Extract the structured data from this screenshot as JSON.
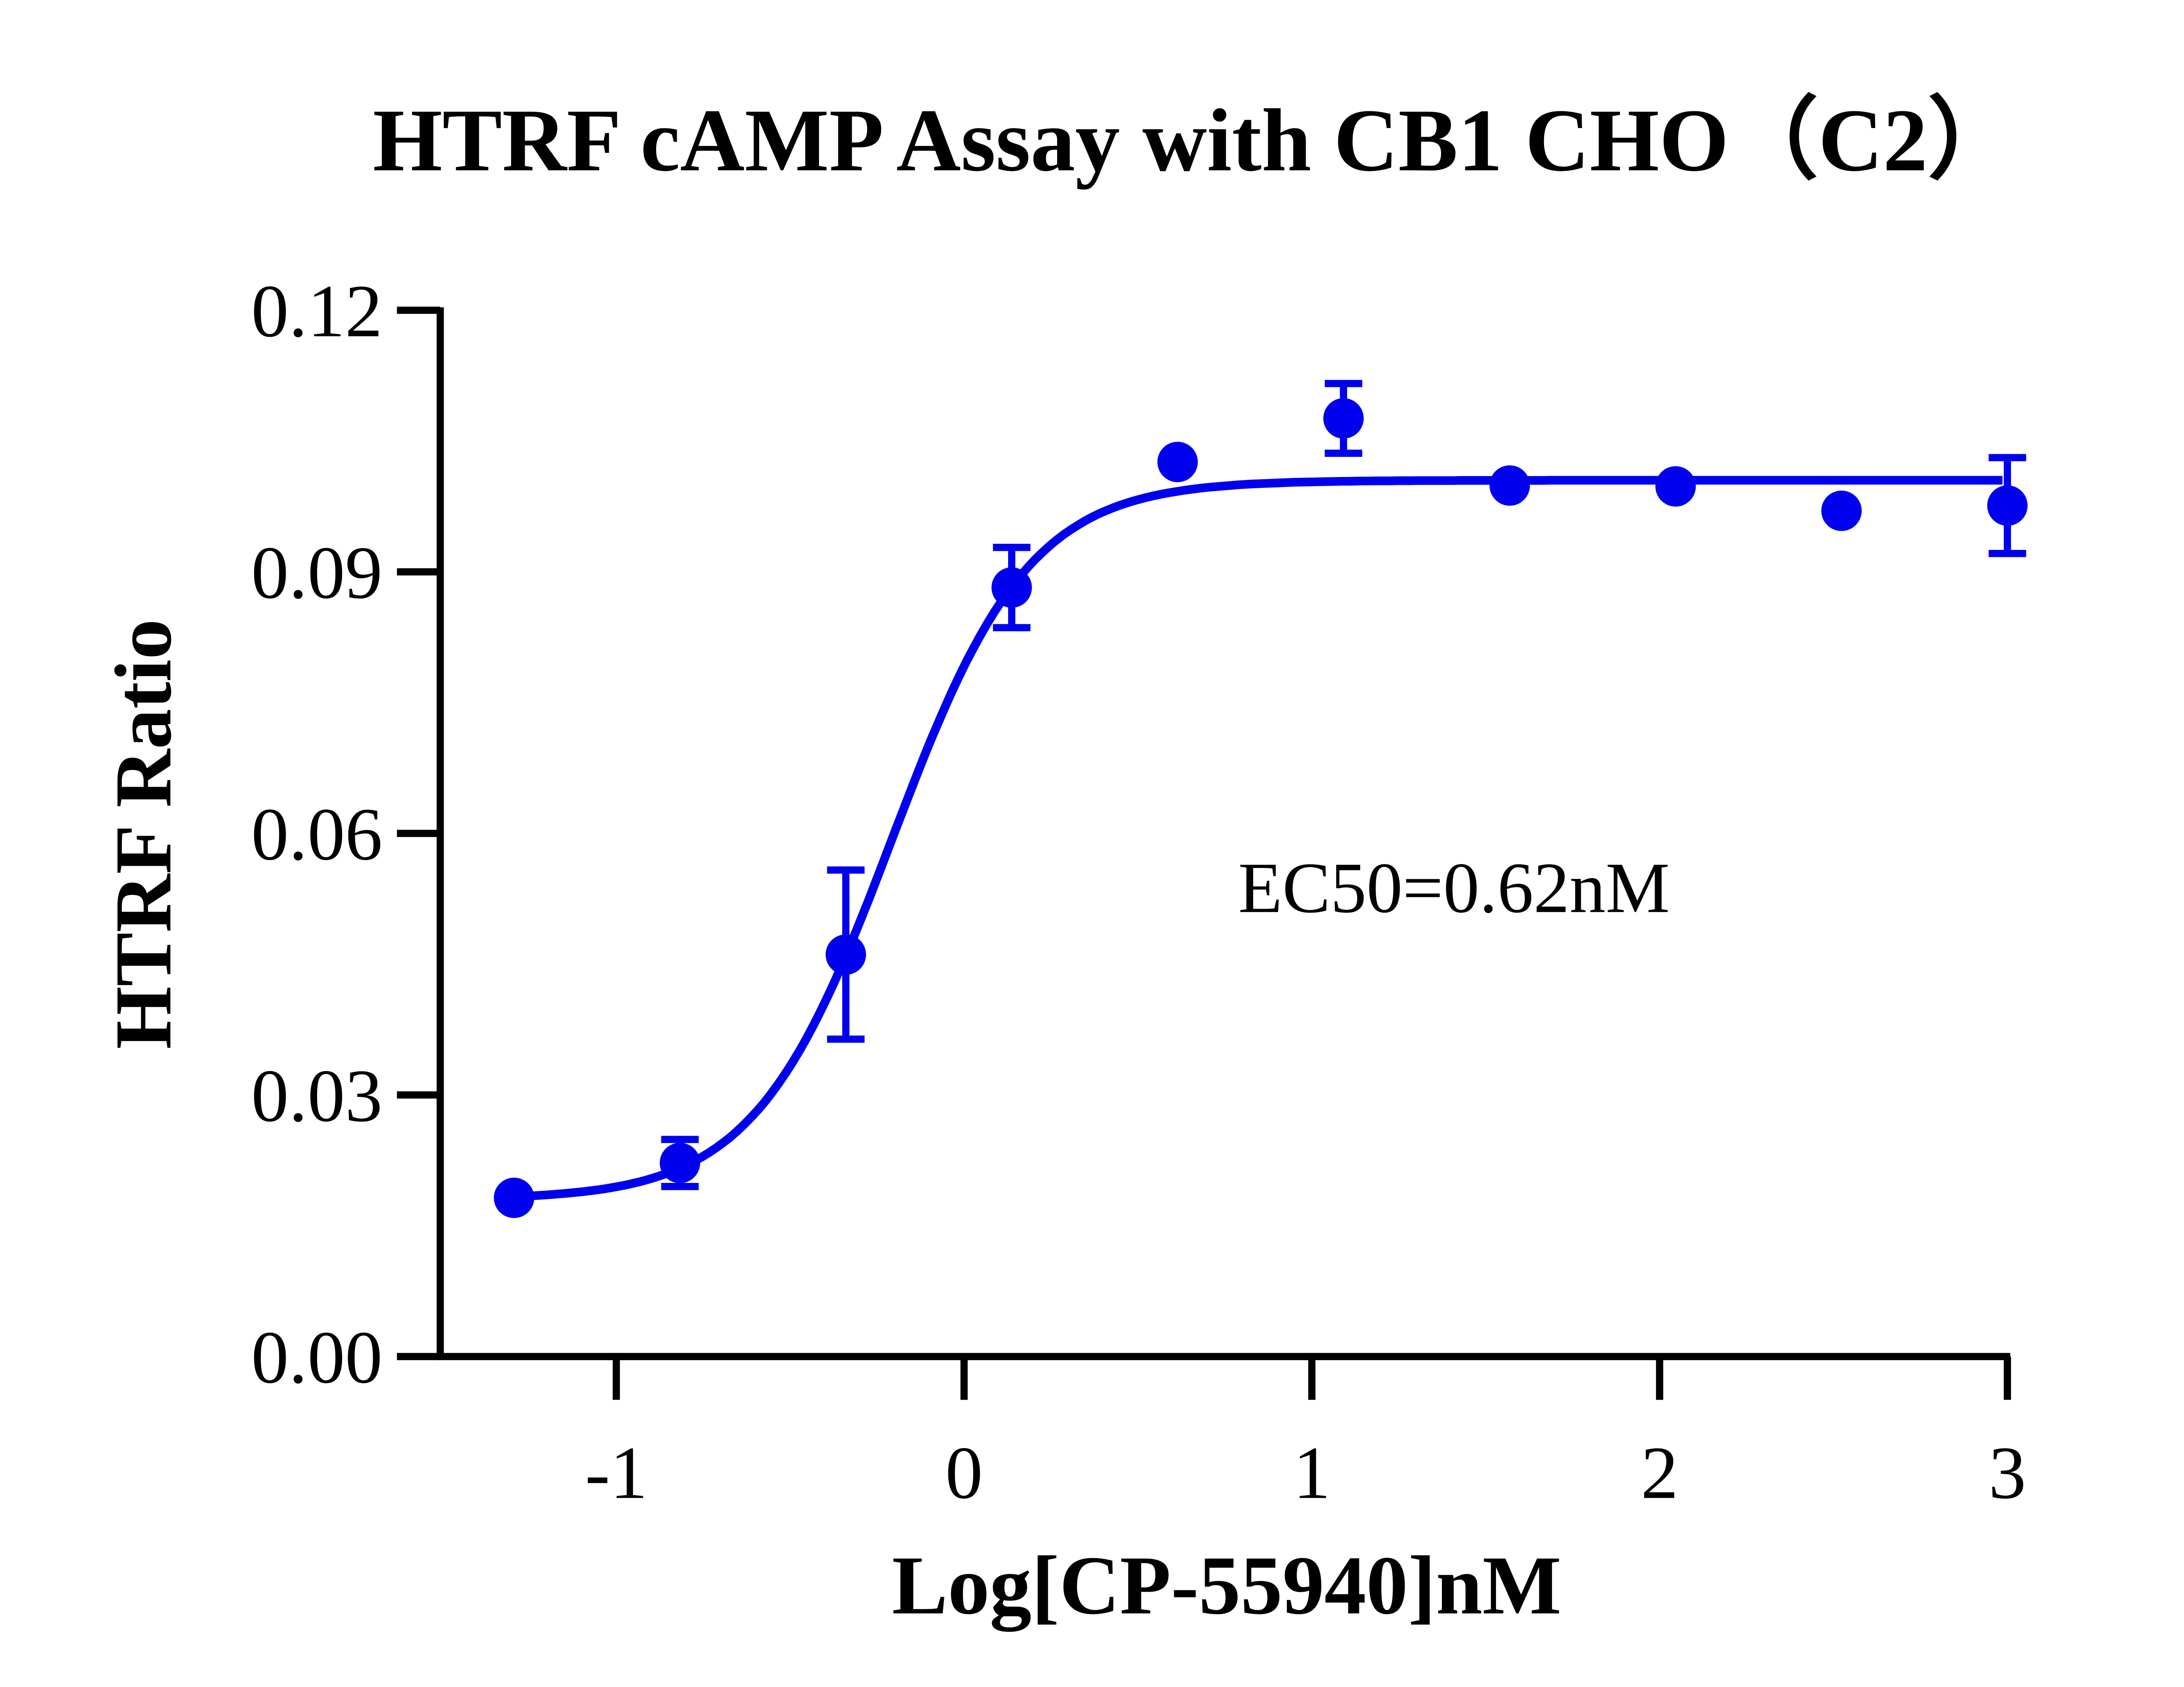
{
  "chart_data": {
    "type": "scatter",
    "title": "HTRF cAMP Assay with CB1 CHO（C2）",
    "xlabel": "Log[CP-55940]nM",
    "ylabel": "HTRF Ratio",
    "xlim": [
      -1.5,
      3
    ],
    "ylim": [
      0,
      0.12
    ],
    "x_ticks": [
      -1,
      0,
      1,
      2,
      3
    ],
    "x_tick_labels": [
      "-1",
      "0",
      "1",
      "2",
      "3"
    ],
    "y_ticks": [
      0,
      0.03,
      0.06,
      0.09,
      0.12
    ],
    "y_tick_labels": [
      "0.00",
      "0.03",
      "0.06",
      "0.09",
      "0.12"
    ],
    "grid": false,
    "color": "#0000ee",
    "annotation": "EC50=0.62nM",
    "series": [
      {
        "x": [
          -1.294,
          -0.817,
          -0.34,
          0.137,
          0.614,
          1.091,
          1.569,
          2.046,
          2.523,
          3.0
        ],
        "y": [
          0.0182,
          0.0222,
          0.0461,
          0.0882,
          0.1026,
          0.1076,
          0.0999,
          0.0998,
          0.097,
          0.0976
        ],
        "error": [
          0,
          0.0027,
          0.0097,
          0.0046,
          0,
          0.004,
          0,
          0,
          0,
          0.0055
        ]
      }
    ],
    "fit": {
      "model": "four-parameter logistic",
      "bottom": 0.018,
      "top": 0.1005,
      "logEC50": -0.208,
      "hill": 2.2
    }
  }
}
